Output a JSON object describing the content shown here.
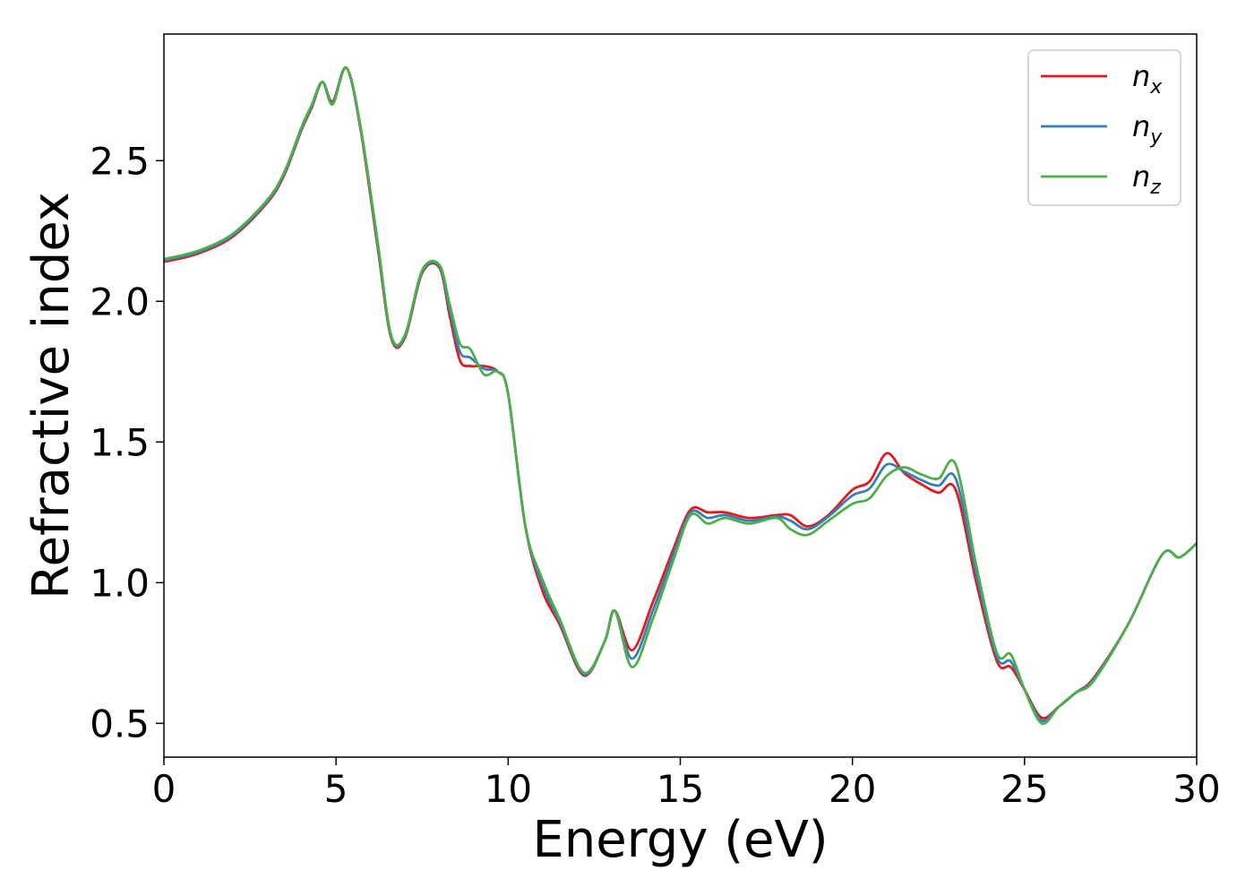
{
  "chart_data": {
    "type": "line",
    "xlabel": "Energy (eV)",
    "ylabel": "Refractive index",
    "xlim": [
      0,
      30
    ],
    "ylim": [
      0.38,
      2.95
    ],
    "xticks": [
      0,
      5,
      10,
      15,
      20,
      25,
      30
    ],
    "yticks": [
      0.5,
      1.0,
      1.5,
      2.0,
      2.5
    ],
    "xtick_labels": [
      "0",
      "5",
      "10",
      "15",
      "20",
      "25",
      "30"
    ],
    "ytick_labels": [
      "0.5",
      "1.0",
      "1.5",
      "2.0",
      "2.5"
    ],
    "grid": false,
    "legend_position": "top-right",
    "series": [
      {
        "name": "n_x",
        "base": "n",
        "sub": "x",
        "color": "#e41a1c",
        "x": [
          0,
          1,
          2,
          3,
          3.5,
          4,
          4.3,
          4.6,
          4.9,
          5.3,
          5.7,
          6.2,
          6.6,
          7.0,
          7.5,
          8.0,
          8.3,
          8.6,
          8.9,
          9.3,
          9.7,
          10.0,
          10.5,
          11.0,
          11.5,
          12.2,
          12.8,
          13.1,
          13.6,
          14.2,
          14.8,
          15.3,
          15.8,
          16.3,
          17.0,
          17.8,
          18.2,
          18.7,
          19.3,
          20.0,
          20.5,
          21.0,
          21.5,
          22.0,
          22.5,
          23.0,
          23.6,
          24.2,
          24.6,
          25.0,
          25.5,
          26.0,
          26.5,
          27.0,
          28.0,
          29.0,
          29.5,
          30.0
        ],
        "y": [
          2.14,
          2.17,
          2.23,
          2.35,
          2.45,
          2.61,
          2.69,
          2.78,
          2.71,
          2.83,
          2.62,
          2.2,
          1.87,
          1.87,
          2.1,
          2.12,
          1.95,
          1.79,
          1.77,
          1.77,
          1.75,
          1.67,
          1.2,
          0.97,
          0.85,
          0.67,
          0.79,
          0.9,
          0.76,
          0.93,
          1.12,
          1.26,
          1.25,
          1.25,
          1.23,
          1.24,
          1.24,
          1.2,
          1.24,
          1.33,
          1.36,
          1.46,
          1.39,
          1.35,
          1.32,
          1.33,
          1.0,
          0.72,
          0.7,
          0.62,
          0.52,
          0.56,
          0.61,
          0.66,
          0.85,
          1.1,
          1.09,
          1.14
        ]
      },
      {
        "name": "n_y",
        "base": "n",
        "sub": "y",
        "color": "#377eb8",
        "x": [
          0,
          1,
          2,
          3,
          3.5,
          4,
          4.3,
          4.6,
          4.9,
          5.3,
          5.7,
          6.2,
          6.6,
          7.0,
          7.5,
          8.0,
          8.3,
          8.6,
          8.9,
          9.3,
          9.7,
          10.0,
          10.5,
          11.0,
          11.5,
          12.2,
          12.8,
          13.1,
          13.6,
          14.2,
          14.8,
          15.3,
          15.8,
          16.3,
          17.0,
          17.8,
          18.2,
          18.7,
          19.3,
          20.0,
          20.5,
          21.0,
          21.5,
          22.0,
          22.5,
          23.0,
          23.6,
          24.2,
          24.6,
          25.0,
          25.5,
          26.0,
          26.5,
          27.0,
          28.0,
          29.0,
          29.5,
          30.0
        ],
        "y": [
          2.145,
          2.175,
          2.235,
          2.355,
          2.455,
          2.615,
          2.695,
          2.78,
          2.705,
          2.83,
          2.625,
          2.21,
          1.875,
          1.875,
          2.105,
          2.125,
          1.97,
          1.82,
          1.8,
          1.76,
          1.75,
          1.67,
          1.2,
          0.99,
          0.86,
          0.675,
          0.79,
          0.9,
          0.73,
          0.9,
          1.1,
          1.25,
          1.23,
          1.24,
          1.22,
          1.235,
          1.22,
          1.19,
          1.235,
          1.31,
          1.335,
          1.42,
          1.395,
          1.365,
          1.345,
          1.37,
          1.03,
          0.735,
          0.72,
          0.62,
          0.51,
          0.56,
          0.61,
          0.655,
          0.85,
          1.1,
          1.09,
          1.14
        ]
      },
      {
        "name": "n_z",
        "base": "n",
        "sub": "z",
        "color": "#4daf4a",
        "x": [
          0,
          1,
          2,
          3,
          3.5,
          4,
          4.3,
          4.6,
          4.9,
          5.3,
          5.7,
          6.2,
          6.6,
          7.0,
          7.5,
          8.0,
          8.3,
          8.6,
          8.9,
          9.3,
          9.7,
          10.0,
          10.5,
          11.0,
          11.5,
          12.2,
          12.8,
          13.1,
          13.6,
          14.2,
          14.8,
          15.3,
          15.8,
          16.3,
          17.0,
          17.8,
          18.2,
          18.7,
          19.3,
          20.0,
          20.5,
          21.0,
          21.5,
          22.0,
          22.5,
          23.0,
          23.6,
          24.2,
          24.6,
          25.0,
          25.5,
          26.0,
          26.5,
          27.0,
          28.0,
          29.0,
          29.5,
          30.0
        ],
        "y": [
          2.15,
          2.18,
          2.24,
          2.36,
          2.46,
          2.62,
          2.7,
          2.78,
          2.7,
          2.83,
          2.63,
          2.22,
          1.88,
          1.88,
          2.11,
          2.13,
          1.99,
          1.85,
          1.83,
          1.74,
          1.75,
          1.67,
          1.2,
          1.01,
          0.87,
          0.68,
          0.79,
          0.9,
          0.7,
          0.87,
          1.08,
          1.24,
          1.21,
          1.23,
          1.21,
          1.23,
          1.19,
          1.17,
          1.22,
          1.28,
          1.3,
          1.38,
          1.41,
          1.385,
          1.37,
          1.42,
          1.06,
          0.75,
          0.745,
          0.62,
          0.5,
          0.56,
          0.61,
          0.65,
          0.85,
          1.1,
          1.09,
          1.14
        ]
      }
    ]
  }
}
